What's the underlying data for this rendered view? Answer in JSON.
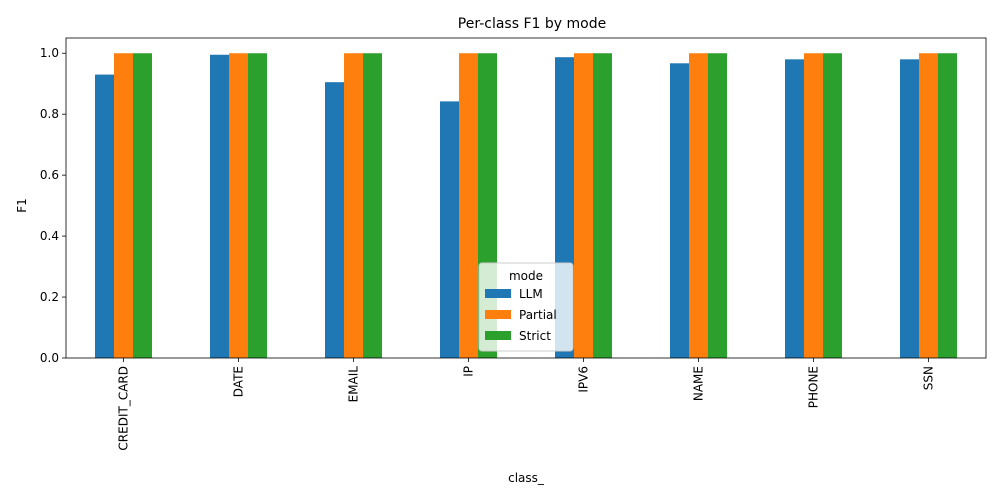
{
  "chart_data": {
    "type": "bar",
    "title": "Per-class F1 by mode",
    "xlabel": "class_",
    "ylabel": "F1",
    "ylim": [
      0,
      1.05
    ],
    "yticks": [
      "0.0",
      "0.2",
      "0.4",
      "0.6",
      "0.8",
      "1.0"
    ],
    "categories": [
      "CREDIT_CARD",
      "DATE",
      "EMAIL",
      "IP",
      "IPV6",
      "NAME",
      "PHONE",
      "SSN"
    ],
    "series": [
      {
        "name": "LLM",
        "color": "#1f77b4",
        "values": [
          0.93,
          0.995,
          0.905,
          0.842,
          0.987,
          0.967,
          0.98,
          0.98
        ]
      },
      {
        "name": "Partial",
        "color": "#ff7f0e",
        "values": [
          1.0,
          1.0,
          1.0,
          1.0,
          1.0,
          1.0,
          1.0,
          1.0
        ]
      },
      {
        "name": "Strict",
        "color": "#2ca02c",
        "values": [
          1.0,
          1.0,
          1.0,
          1.0,
          1.0,
          1.0,
          1.0,
          1.0
        ]
      }
    ],
    "legend": {
      "title": "mode",
      "placement": "lower-center"
    },
    "grid": false
  }
}
